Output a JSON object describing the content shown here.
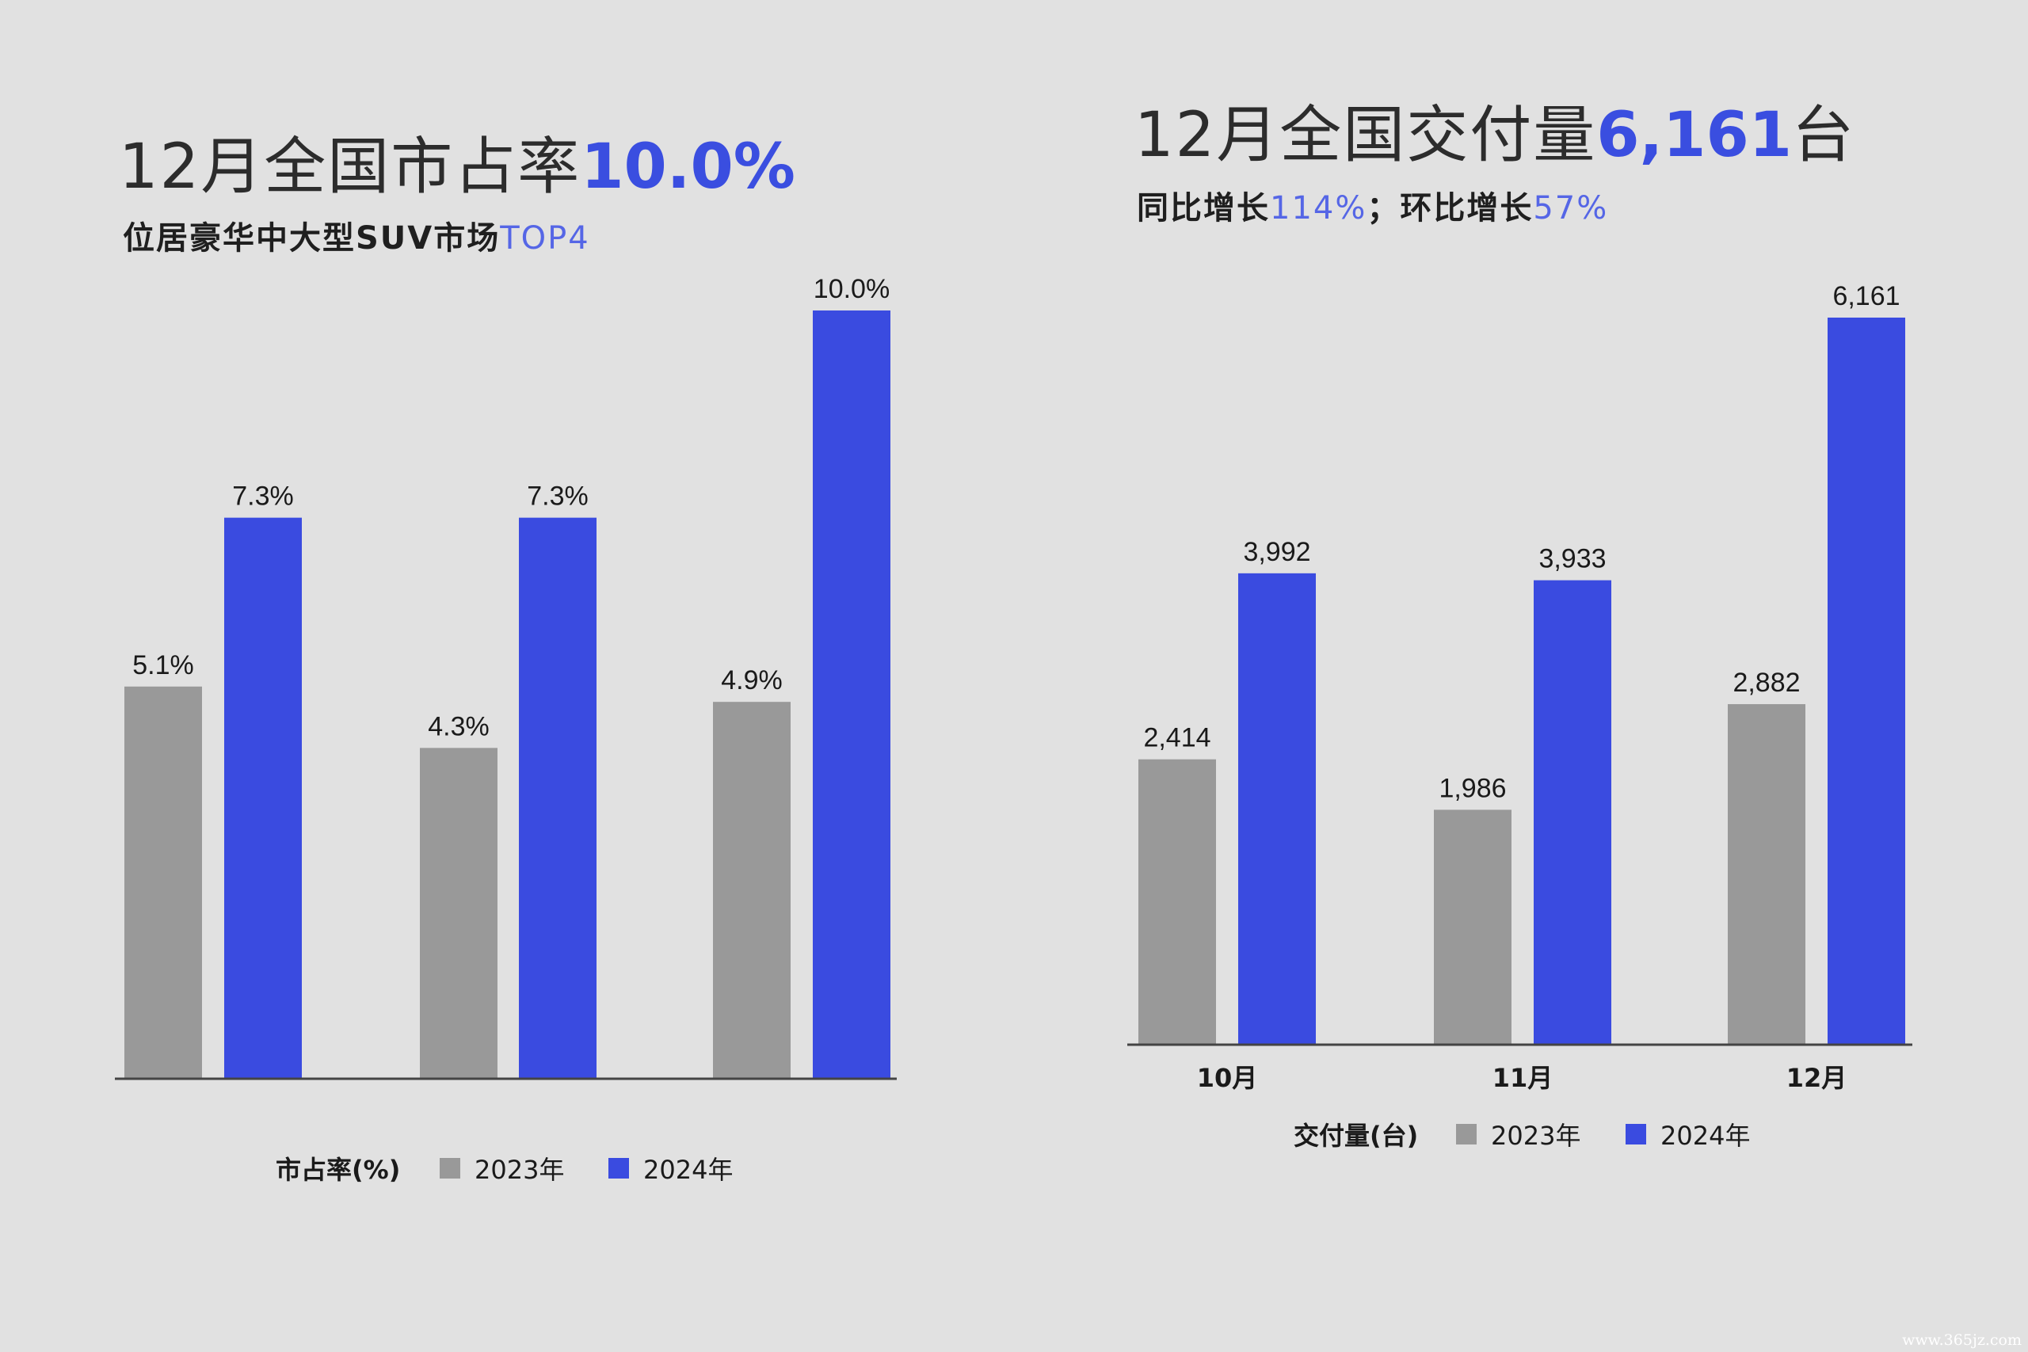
{
  "left": {
    "headline_plain": "12月全国市占率",
    "headline_value": "10.0%",
    "subtitle_plain": "位居豪华中大型SUV市场",
    "subtitle_accent": "TOP4"
  },
  "right": {
    "headline_plain": "12月全国交付量",
    "headline_value": "6,161",
    "headline_unit": "台",
    "subtitle_1": "同比增长",
    "subtitle_1_value": "114%",
    "subtitle_sep": "；",
    "subtitle_2": "环比增长",
    "subtitle_2_value": "57%"
  },
  "colors": {
    "series_2023": "#999999",
    "series_2024": "#3a4be0",
    "axis": "#444444",
    "label": "#1a1a1a"
  },
  "watermark": "www.365jz.com",
  "chart_data": [
    {
      "type": "bar",
      "categories": [
        "",
        "",
        ""
      ],
      "series": [
        {
          "name": "2023年",
          "values": [
            5.1,
            4.3,
            4.9
          ],
          "labels": [
            "5.1%",
            "4.3%",
            "4.9%"
          ]
        },
        {
          "name": "2024年",
          "values": [
            7.3,
            7.3,
            10.0
          ],
          "labels": [
            "7.3%",
            "7.3%",
            "10.0%"
          ]
        }
      ],
      "legend_title": "市占率(%)",
      "legend_position": "bottom",
      "ylim": [
        0,
        10
      ],
      "grid": false
    },
    {
      "type": "bar",
      "categories": [
        "10月",
        "11月",
        "12月"
      ],
      "series": [
        {
          "name": "2023年",
          "values": [
            2414,
            1986,
            2882
          ],
          "labels": [
            "2,414",
            "1,986",
            "2,882"
          ]
        },
        {
          "name": "2024年",
          "values": [
            3992,
            3933,
            6161
          ],
          "labels": [
            "3,992",
            "3,933",
            "6,161"
          ]
        }
      ],
      "legend_title": "交付量(台)",
      "legend_position": "bottom",
      "ylim": [
        0,
        6161
      ],
      "grid": false
    }
  ]
}
